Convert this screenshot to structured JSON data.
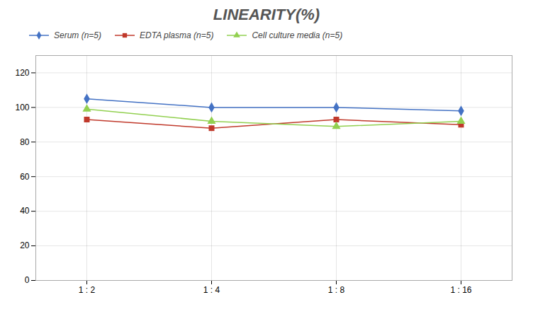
{
  "chart_data": {
    "type": "line",
    "title": "LINEARITY(%)",
    "categories": [
      "1 : 2",
      "1 : 4",
      "1 : 8",
      "1 : 16"
    ],
    "series": [
      {
        "name": "Serum (n=5)",
        "color": "#4472C4",
        "marker": "diamond",
        "values": [
          105,
          100,
          100,
          98
        ]
      },
      {
        "name": "EDTA plasma (n=5)",
        "color": "#C0392B",
        "marker": "square",
        "values": [
          93,
          88,
          93,
          90
        ]
      },
      {
        "name": "Cell culture media (n=5)",
        "color": "#92D050",
        "marker": "triangle",
        "values": [
          99,
          92,
          89,
          92
        ]
      }
    ],
    "ylim": [
      0,
      130
    ],
    "yticks": [
      0,
      20,
      40,
      60,
      80,
      100,
      120
    ],
    "grid": true,
    "legend": "upper left"
  }
}
